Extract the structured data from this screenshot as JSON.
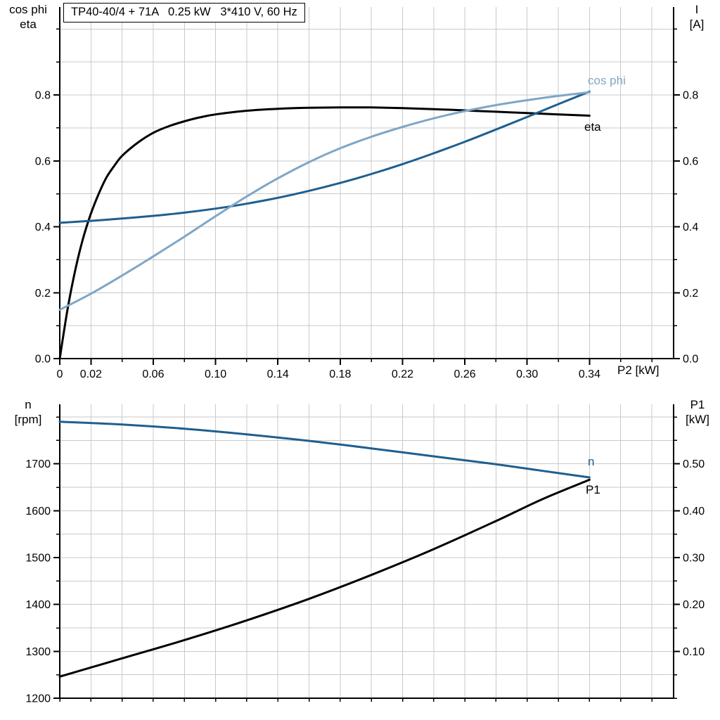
{
  "labels": {
    "top_left_axis": "cos phi\neta",
    "top_right_axis": "I\n[A]",
    "bottom_left_axis": "n\n[rpm]",
    "bottom_right_axis": "P1\n[kW]",
    "x_axis": "P2 [kW]"
  },
  "colors": {
    "black": "#000000",
    "dark_blue": "#1e5f90",
    "light_blue": "#7fa6c6",
    "grid": "#c9c9c9"
  },
  "chart_data": [
    {
      "type": "line",
      "title": "TP40-40/4 + 71A   0.25 kW   3*410 V, 60 Hz",
      "xlabel": "P2 [kW]",
      "ylabel_left": "cos phi / eta",
      "ylabel_right": "I [A]",
      "xlim": [
        0,
        0.394
      ],
      "ylim": [
        0,
        1.0667
      ],
      "ylim_right": [
        0,
        1.0667
      ],
      "grid": {
        "x_step": 0.02,
        "x_max": 0.38,
        "y_step": 0.1,
        "y_max": 1.0,
        "color": "#c9c9c9"
      },
      "x_ticks": {
        "labeled": [
          {
            "v": 0,
            "label": "0"
          },
          {
            "v": 0.02,
            "label": "0.02"
          },
          {
            "v": 0.06,
            "label": "0.06"
          },
          {
            "v": 0.1,
            "label": "0.10"
          },
          {
            "v": 0.14,
            "label": "0.14"
          },
          {
            "v": 0.18,
            "label": "0.18"
          },
          {
            "v": 0.22,
            "label": "0.22"
          },
          {
            "v": 0.26,
            "label": "0.26"
          },
          {
            "v": 0.3,
            "label": "0.30"
          },
          {
            "v": 0.34,
            "label": "0.34"
          }
        ],
        "minor_step": 0.02,
        "minor_max": 0.38
      },
      "y_ticks_left": {
        "labeled": [
          {
            "v": 0.0,
            "label": "0.0"
          },
          {
            "v": 0.2,
            "label": "0.2"
          },
          {
            "v": 0.4,
            "label": "0.4"
          },
          {
            "v": 0.6,
            "label": "0.6"
          },
          {
            "v": 0.8,
            "label": "0.8"
          }
        ],
        "minor_step": 0.1,
        "minor_max": 1.0
      },
      "y_ticks_right": {
        "labeled": [
          {
            "v": 0.0,
            "label": "0.0"
          },
          {
            "v": 0.2,
            "label": "0.2"
          },
          {
            "v": 0.4,
            "label": "0.4"
          },
          {
            "v": 0.6,
            "label": "0.6"
          },
          {
            "v": 0.8,
            "label": "0.8"
          }
        ],
        "minor_step": 0.1,
        "minor_max": 1.0
      },
      "series": [
        {
          "name": "eta",
          "color": "#000000",
          "width": 3,
          "axis": "left",
          "points": [
            [
              0,
              0
            ],
            [
              0.005,
              0.15
            ],
            [
              0.01,
              0.27
            ],
            [
              0.015,
              0.365
            ],
            [
              0.02,
              0.44
            ],
            [
              0.025,
              0.5
            ],
            [
              0.03,
              0.55
            ],
            [
              0.035,
              0.585
            ],
            [
              0.04,
              0.615
            ],
            [
              0.05,
              0.655
            ],
            [
              0.06,
              0.685
            ],
            [
              0.07,
              0.705
            ],
            [
              0.08,
              0.72
            ],
            [
              0.09,
              0.732
            ],
            [
              0.1,
              0.741
            ],
            [
              0.12,
              0.752
            ],
            [
              0.14,
              0.758
            ],
            [
              0.16,
              0.761
            ],
            [
              0.18,
              0.762
            ],
            [
              0.2,
              0.762
            ],
            [
              0.22,
              0.76
            ],
            [
              0.24,
              0.757
            ],
            [
              0.26,
              0.753
            ],
            [
              0.28,
              0.749
            ],
            [
              0.3,
              0.745
            ],
            [
              0.32,
              0.741
            ],
            [
              0.34,
              0.737
            ]
          ]
        },
        {
          "name": "I",
          "color": "#1e5f90",
          "width": 3,
          "axis": "left",
          "points": [
            [
              0,
              0.412
            ],
            [
              0.02,
              0.418
            ],
            [
              0.04,
              0.425
            ],
            [
              0.06,
              0.433
            ],
            [
              0.08,
              0.443
            ],
            [
              0.1,
              0.455
            ],
            [
              0.12,
              0.47
            ],
            [
              0.14,
              0.488
            ],
            [
              0.16,
              0.509
            ],
            [
              0.18,
              0.533
            ],
            [
              0.2,
              0.56
            ],
            [
              0.22,
              0.59
            ],
            [
              0.24,
              0.623
            ],
            [
              0.26,
              0.658
            ],
            [
              0.28,
              0.695
            ],
            [
              0.3,
              0.733
            ],
            [
              0.32,
              0.772
            ],
            [
              0.34,
              0.81
            ]
          ]
        },
        {
          "name": "cos phi",
          "color": "#7fa6c6",
          "width": 3,
          "axis": "left",
          "points": [
            [
              0,
              0.148
            ],
            [
              0.02,
              0.197
            ],
            [
              0.04,
              0.252
            ],
            [
              0.06,
              0.31
            ],
            [
              0.08,
              0.37
            ],
            [
              0.1,
              0.432
            ],
            [
              0.12,
              0.492
            ],
            [
              0.14,
              0.547
            ],
            [
              0.16,
              0.596
            ],
            [
              0.18,
              0.638
            ],
            [
              0.2,
              0.673
            ],
            [
              0.22,
              0.703
            ],
            [
              0.24,
              0.729
            ],
            [
              0.26,
              0.751
            ],
            [
              0.28,
              0.769
            ],
            [
              0.3,
              0.784
            ],
            [
              0.32,
              0.797
            ],
            [
              0.34,
              0.808
            ]
          ]
        }
      ]
    },
    {
      "type": "line",
      "title": "",
      "xlabel": "",
      "ylabel_left": "n [rpm]",
      "ylabel_right": "P1 [kW]",
      "xlim": [
        0,
        0.394
      ],
      "ylim": [
        1200,
        1827
      ],
      "ylim_right": [
        0,
        0.627
      ],
      "grid": {
        "x_step": 0.02,
        "x_max": 0.38,
        "y_step": 50,
        "y_max": 1800,
        "color": "#c9c9c9"
      },
      "x_ticks": {
        "labeled": [],
        "minor_step": 0.02,
        "minor_max": 0.38
      },
      "y_ticks_left": {
        "labeled": [
          {
            "v": 1200,
            "label": "1200"
          },
          {
            "v": 1300,
            "label": "1300"
          },
          {
            "v": 1400,
            "label": "1400"
          },
          {
            "v": 1500,
            "label": "1500"
          },
          {
            "v": 1600,
            "label": "1600"
          },
          {
            "v": 1700,
            "label": "1700"
          }
        ],
        "minor_step": 50,
        "minor_max": 1800
      },
      "y_ticks_right": {
        "labeled": [
          {
            "v": 0.1,
            "label": "0.10"
          },
          {
            "v": 0.2,
            "label": "0.20"
          },
          {
            "v": 0.3,
            "label": "0.30"
          },
          {
            "v": 0.4,
            "label": "0.40"
          },
          {
            "v": 0.5,
            "label": "0.50"
          }
        ],
        "minor_step": 0.05,
        "minor_max": 0.6
      },
      "series": [
        {
          "name": "n",
          "color": "#1e5f90",
          "width": 3,
          "axis": "left",
          "points": [
            [
              0,
              1790
            ],
            [
              0.04,
              1784
            ],
            [
              0.08,
              1775
            ],
            [
              0.12,
              1763
            ],
            [
              0.16,
              1749
            ],
            [
              0.2,
              1733
            ],
            [
              0.24,
              1716
            ],
            [
              0.28,
              1699
            ],
            [
              0.31,
              1685
            ],
            [
              0.34,
              1671
            ]
          ]
        },
        {
          "name": "P1",
          "color": "#000000",
          "width": 3,
          "axis": "right",
          "points": [
            [
              0,
              0.046
            ],
            [
              0.04,
              0.085
            ],
            [
              0.08,
              0.124
            ],
            [
              0.12,
              0.166
            ],
            [
              0.16,
              0.212
            ],
            [
              0.2,
              0.263
            ],
            [
              0.24,
              0.318
            ],
            [
              0.28,
              0.378
            ],
            [
              0.31,
              0.425
            ],
            [
              0.34,
              0.466
            ]
          ]
        }
      ]
    }
  ]
}
